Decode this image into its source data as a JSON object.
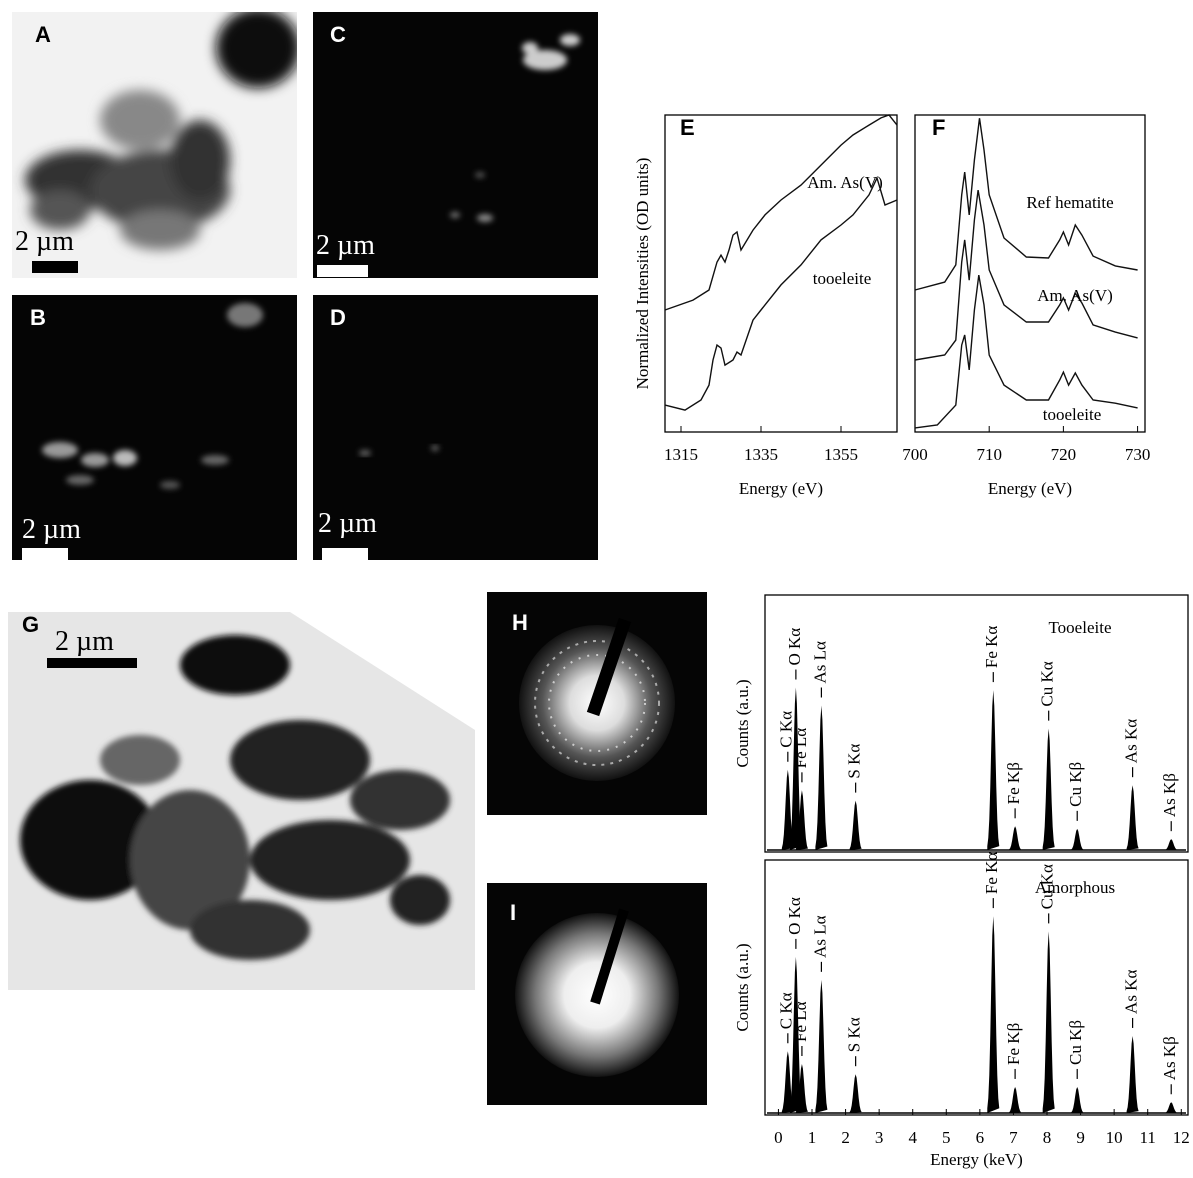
{
  "panels": {
    "A": {
      "label": "A",
      "scale_bar": "2 µm"
    },
    "B": {
      "label": "B",
      "scale_bar": "2 µm"
    },
    "C": {
      "label": "C",
      "scale_bar": "2 µm"
    },
    "D": {
      "label": "D",
      "scale_bar": "2 µm"
    },
    "G": {
      "label": "G",
      "scale_bar": "2 µm"
    },
    "H": {
      "label": "H"
    },
    "I": {
      "label": "I"
    },
    "E": {
      "label": "E"
    },
    "F": {
      "label": "F"
    }
  },
  "chart_data": [
    {
      "type": "line",
      "ylabel": "Normalized Intensities (OD units)",
      "xlabel": "Energy (eV)",
      "xlim": [
        1311,
        1369
      ],
      "ylim": [
        0,
        100
      ],
      "xticks": [
        1315,
        1335,
        1355
      ],
      "series": [
        {
          "name": "Am. As(V)",
          "color": "#111111",
          "x": [
            1311,
            1318,
            1322,
            1324,
            1325,
            1326,
            1327,
            1328,
            1329,
            1330,
            1333,
            1336,
            1340,
            1345,
            1350,
            1355,
            1358,
            1362,
            1365,
            1367,
            1369
          ],
          "values": [
            38.5,
            41.6,
            44.8,
            53.6,
            55.8,
            53.6,
            57.4,
            62.1,
            63.1,
            57.4,
            63.7,
            68.5,
            73.2,
            77.9,
            84.2,
            90.5,
            93.7,
            96.8,
            99.1,
            100,
            96.8
          ]
        },
        {
          "name": "tooeleite",
          "color": "#111111",
          "x": [
            1311,
            1316,
            1320,
            1322,
            1323,
            1324,
            1325,
            1326,
            1328,
            1329,
            1330,
            1333,
            1336,
            1340,
            1345,
            1350,
            1355,
            1358,
            1362,
            1364,
            1366,
            1369
          ],
          "values": [
            8.5,
            6.9,
            10.1,
            14.8,
            22.7,
            27.4,
            26.5,
            21.1,
            22.7,
            25.2,
            24.3,
            35.3,
            40.1,
            46.4,
            52.7,
            60.6,
            65.3,
            68.5,
            74.8,
            80.1,
            71.6,
            73.2
          ]
        }
      ]
    },
    {
      "type": "line",
      "xlabel": "Energy (eV)",
      "xlim": [
        700,
        731
      ],
      "ylim": [
        0,
        100
      ],
      "xticks": [
        700,
        710,
        720,
        730
      ],
      "series": [
        {
          "name": "Ref hematite",
          "color": "#111111",
          "x": [
            700,
            704,
            705.5,
            706.3,
            706.7,
            707.3,
            708,
            708.7,
            709.3,
            710,
            712,
            715,
            718,
            719.5,
            720,
            720.7,
            721.6,
            722.5,
            724,
            727,
            730
          ],
          "values": [
            44.8,
            47.3,
            52.7,
            74.8,
            82,
            68.5,
            85.8,
            99,
            89,
            74.8,
            61.2,
            55.2,
            54.9,
            60.6,
            63.1,
            59,
            65.3,
            62.1,
            55.5,
            52.4,
            51.1
          ]
        },
        {
          "name": "Am. As(V)",
          "color": "#111111",
          "x": [
            700,
            704,
            705.5,
            706.3,
            706.7,
            707.3,
            708,
            708.5,
            709.3,
            710,
            712,
            715,
            718,
            719.5,
            720,
            720.7,
            721.6,
            722.5,
            724,
            727,
            730
          ],
          "values": [
            22.7,
            24.3,
            29,
            53.6,
            60.6,
            47.9,
            66.9,
            76.3,
            65.3,
            51.1,
            40.1,
            34.7,
            34.7,
            40.1,
            42.3,
            38.5,
            43.8,
            40.7,
            33.8,
            31.5,
            29.7
          ]
        },
        {
          "name": "tooeleite",
          "color": "#111111",
          "x": [
            700,
            703,
            705.5,
            706.3,
            706.7,
            707.3,
            708,
            708.6,
            709.3,
            710,
            712,
            715,
            718,
            719.5,
            720,
            720.7,
            721.6,
            722.5,
            724,
            727,
            730
          ],
          "values": [
            1.3,
            2.2,
            8.5,
            27.4,
            30.6,
            19.6,
            38.5,
            49.5,
            40.1,
            24.3,
            14.8,
            10.1,
            10.1,
            16.4,
            18.9,
            14.8,
            18.6,
            14.8,
            10.1,
            9.1,
            7.6
          ]
        }
      ]
    },
    {
      "type": "spectrum",
      "title": "Tooeleite",
      "ylabel": "Counts (a.u.)",
      "xlim": [
        -0.4,
        12.2
      ],
      "ylim": [
        0,
        100
      ],
      "peak_labels": [
        "C Kα",
        "O Kα",
        "Fe Lα",
        "As Lα",
        "S Kα",
        "Fe Kα",
        "Fe Kβ",
        "Cu Kα",
        "Cu Kβ",
        "As Kα",
        "As Kβ"
      ],
      "x": [
        0.28,
        0.52,
        0.7,
        1.28,
        2.3,
        6.4,
        7.05,
        8.05,
        8.9,
        10.55,
        11.7
      ],
      "values": [
        32,
        64,
        24,
        57,
        20,
        63,
        10,
        48,
        9,
        26,
        5
      ]
    },
    {
      "type": "spectrum",
      "title": "Amorphous",
      "ylabel": "Counts (a.u.)",
      "xlabel": "Energy (keV)",
      "xlim": [
        -0.4,
        12.2
      ],
      "ylim": [
        0,
        100
      ],
      "xticks": [
        0,
        1,
        2,
        3,
        4,
        5,
        6,
        7,
        8,
        9,
        10,
        11,
        12
      ],
      "peak_labels": [
        "C Kα",
        "O Kα",
        "Fe Lα",
        "As Lα",
        "S Kα",
        "Fe Kα",
        "Fe Kβ",
        "Cu Kα",
        "Cu Kβ",
        "As Kα",
        "As Kβ"
      ],
      "x": [
        0.28,
        0.52,
        0.7,
        1.28,
        2.3,
        6.4,
        7.05,
        8.05,
        8.9,
        10.55,
        11.7
      ],
      "values": [
        25,
        62,
        20,
        53,
        16,
        78,
        11,
        72,
        11,
        31,
        5
      ]
    }
  ]
}
